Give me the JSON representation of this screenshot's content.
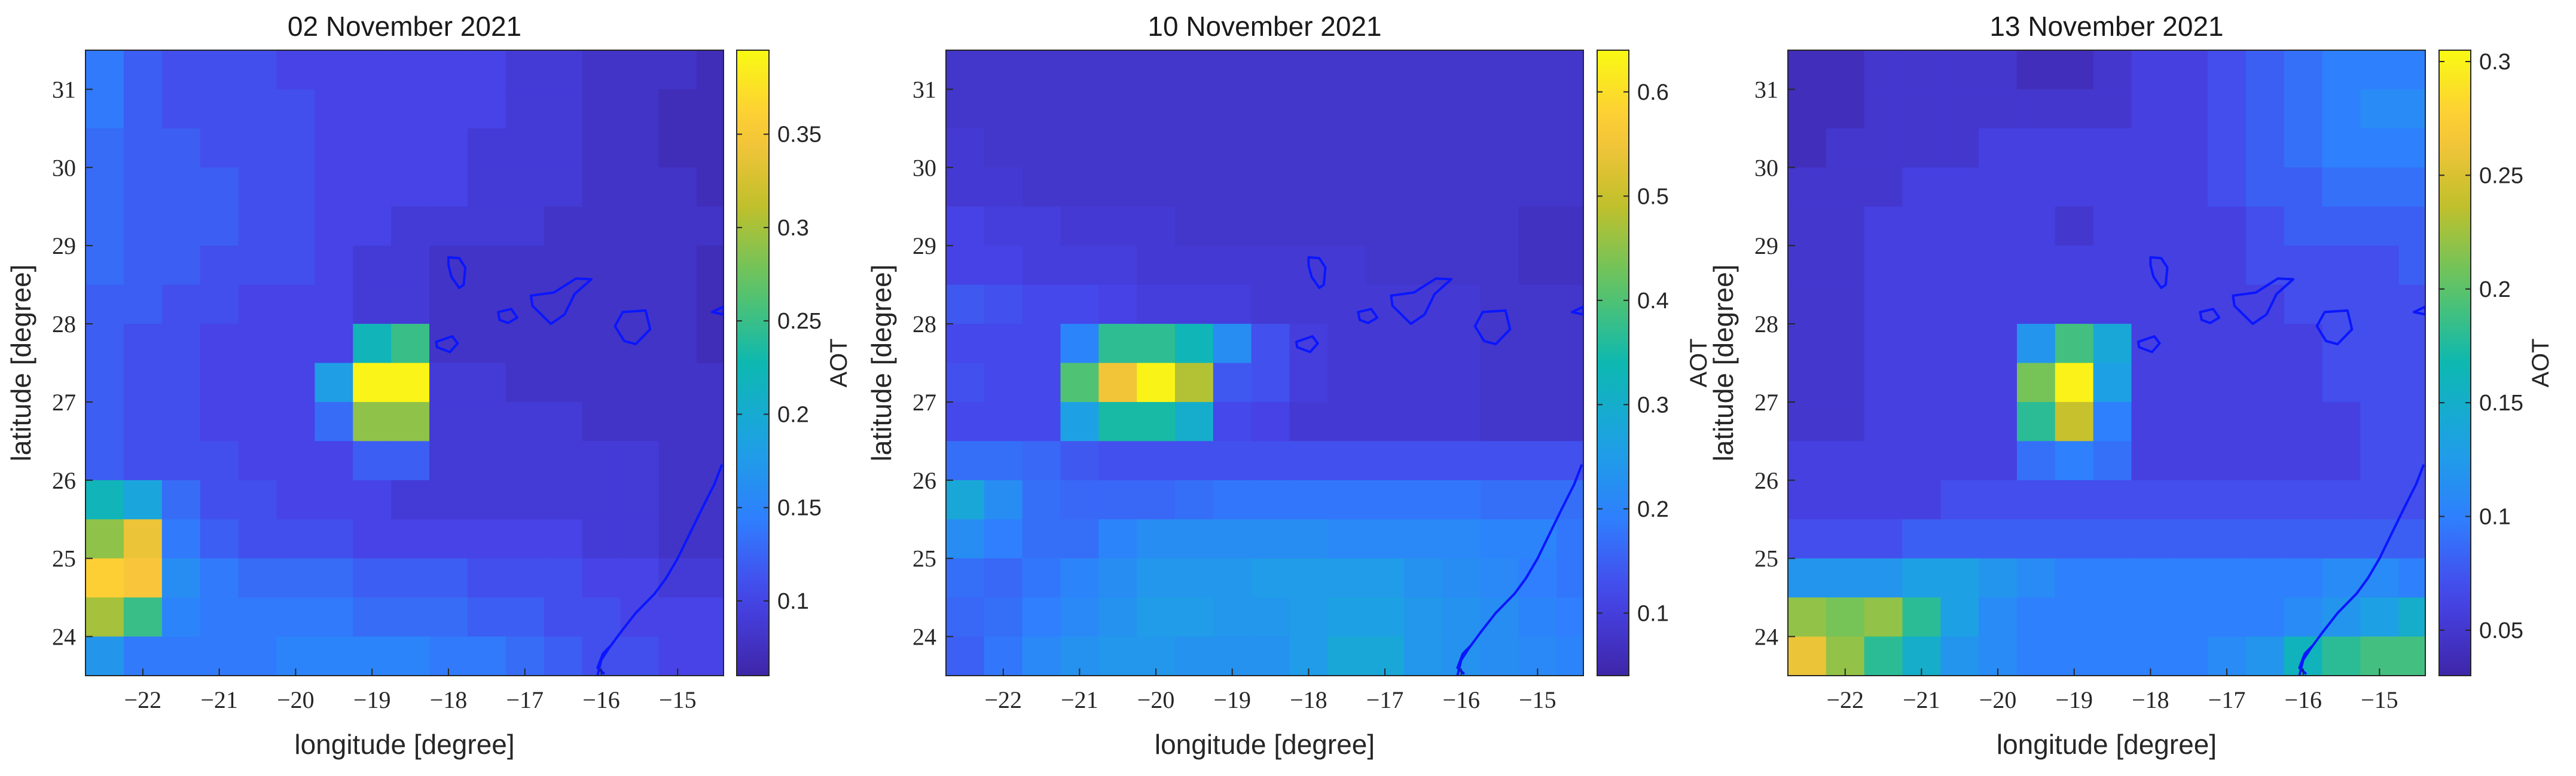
{
  "colormap": [
    "#3e26a8",
    "#4744e9",
    "#2f7ffe",
    "#1ca3e2",
    "#0db8b0",
    "#5fc465",
    "#c0c02c",
    "#fec63c",
    "#f9fa13"
  ],
  "coastline_color": "#0000ff",
  "chart_data": [
    {
      "type": "heatmap",
      "title": "02 November 2021",
      "xlabel": "longitude [degree]",
      "ylabel": "latitude [degree]",
      "xlim": [
        -22.75,
        -14.4
      ],
      "ylim": [
        23.5,
        31.5
      ],
      "xticks": [
        -22,
        -21,
        -20,
        -19,
        -18,
        -17,
        -16,
        -15
      ],
      "yticks": [
        24,
        25,
        26,
        27,
        28,
        29,
        30,
        31
      ],
      "colorbar": {
        "label": "AOT",
        "clim": [
          0.06,
          0.395
        ],
        "ticks": [
          0.1,
          0.15,
          0.2,
          0.25,
          0.3,
          0.35
        ]
      },
      "cell_size_degree": 0.5,
      "first_cell_center": {
        "lon": -22.5,
        "lat": 31.25
      },
      "values": [
        [
          0.14,
          0.12,
          0.11,
          0.11,
          0.11,
          0.1,
          0.1,
          0.1,
          0.1,
          0.1,
          0.1,
          0.09,
          0.09,
          0.08,
          0.08,
          0.08,
          0.07
        ],
        [
          0.14,
          0.12,
          0.11,
          0.11,
          0.11,
          0.11,
          0.1,
          0.1,
          0.1,
          0.1,
          0.1,
          0.09,
          0.09,
          0.08,
          0.08,
          0.07,
          0.07
        ],
        [
          0.13,
          0.12,
          0.12,
          0.11,
          0.11,
          0.11,
          0.1,
          0.1,
          0.1,
          0.1,
          0.09,
          0.09,
          0.09,
          0.08,
          0.08,
          0.07,
          0.07
        ],
        [
          0.13,
          0.12,
          0.12,
          0.12,
          0.11,
          0.11,
          0.1,
          0.1,
          0.1,
          0.1,
          0.09,
          0.09,
          0.09,
          0.08,
          0.08,
          0.08,
          0.07
        ],
        [
          0.13,
          0.12,
          0.12,
          0.12,
          0.11,
          0.11,
          0.1,
          0.1,
          0.09,
          0.09,
          0.09,
          0.09,
          0.08,
          0.08,
          0.08,
          0.08,
          0.08
        ],
        [
          0.13,
          0.12,
          0.12,
          0.11,
          0.11,
          0.11,
          0.1,
          0.09,
          0.09,
          0.08,
          0.08,
          0.08,
          0.08,
          0.08,
          0.08,
          0.08,
          0.07
        ],
        [
          0.12,
          0.12,
          0.11,
          0.11,
          0.1,
          0.1,
          0.1,
          0.09,
          0.09,
          0.08,
          0.08,
          0.08,
          0.08,
          0.08,
          0.08,
          0.08,
          0.07
        ],
        [
          0.12,
          0.11,
          0.11,
          0.1,
          0.1,
          0.1,
          0.1,
          0.22,
          0.25,
          0.08,
          0.08,
          0.08,
          0.08,
          0.08,
          0.08,
          0.08,
          0.07
        ],
        [
          0.12,
          0.11,
          0.11,
          0.1,
          0.1,
          0.1,
          0.18,
          0.39,
          0.39,
          0.09,
          0.09,
          0.08,
          0.08,
          0.08,
          0.08,
          0.08,
          0.08
        ],
        [
          0.12,
          0.11,
          0.11,
          0.1,
          0.1,
          0.1,
          0.13,
          0.29,
          0.29,
          0.09,
          0.09,
          0.09,
          0.09,
          0.08,
          0.08,
          0.08,
          0.08
        ],
        [
          0.12,
          0.11,
          0.11,
          0.11,
          0.1,
          0.1,
          0.1,
          0.12,
          0.12,
          0.09,
          0.09,
          0.09,
          0.09,
          0.09,
          0.09,
          0.08,
          0.08
        ],
        [
          0.22,
          0.19,
          0.13,
          0.11,
          0.11,
          0.1,
          0.1,
          0.1,
          0.09,
          0.09,
          0.09,
          0.09,
          0.09,
          0.09,
          0.09,
          0.08,
          0.08
        ],
        [
          0.29,
          0.34,
          0.14,
          0.12,
          0.11,
          0.11,
          0.11,
          0.1,
          0.1,
          0.1,
          0.1,
          0.1,
          0.1,
          0.09,
          0.09,
          0.08,
          0.08
        ],
        [
          0.36,
          0.35,
          0.16,
          0.14,
          0.13,
          0.13,
          0.13,
          0.12,
          0.12,
          0.12,
          0.11,
          0.11,
          0.11,
          0.1,
          0.1,
          0.09,
          0.09
        ],
        [
          0.3,
          0.25,
          0.15,
          0.14,
          0.14,
          0.14,
          0.14,
          0.13,
          0.13,
          0.13,
          0.12,
          0.12,
          0.11,
          0.11,
          0.1,
          0.1,
          0.1
        ],
        [
          0.17,
          0.14,
          0.14,
          0.14,
          0.14,
          0.15,
          0.15,
          0.15,
          0.15,
          0.14,
          0.14,
          0.13,
          0.12,
          0.11,
          0.11,
          0.1,
          0.1
        ],
        [
          0.14,
          0.13,
          0.14,
          0.14,
          0.14,
          0.15,
          0.16,
          0.16,
          0.15,
          0.14,
          0.14,
          0.13,
          0.12,
          0.1,
          0.12,
          0.12,
          0.12
        ],
        [
          0.13,
          0.13,
          0.13,
          0.14,
          0.14,
          0.14,
          0.15,
          0.15,
          0.15,
          0.14,
          0.14,
          0.13,
          0.12,
          0.12,
          0.13,
          0.13,
          0.13
        ]
      ]
    },
    {
      "type": "heatmap",
      "title": "10 November 2021",
      "xlabel": "longitude [degree]",
      "ylabel": "latitude [degree]",
      "xlim": [
        -22.75,
        -14.4
      ],
      "ylim": [
        23.5,
        31.5
      ],
      "xticks": [
        -22,
        -21,
        -20,
        -19,
        -18,
        -17,
        -16,
        -15
      ],
      "yticks": [
        24,
        25,
        26,
        27,
        28,
        29,
        30,
        31
      ],
      "colorbar": {
        "label": "AOT",
        "clim": [
          0.04,
          0.64
        ],
        "ticks": [
          0.1,
          0.2,
          0.3,
          0.4,
          0.5,
          0.6
        ]
      },
      "cell_size_degree": 0.5,
      "first_cell_center": {
        "lon": -22.5,
        "lat": 31.25
      },
      "values": [
        [
          0.08,
          0.08,
          0.08,
          0.08,
          0.08,
          0.08,
          0.08,
          0.08,
          0.08,
          0.08,
          0.08,
          0.08,
          0.08,
          0.08,
          0.08,
          0.08,
          0.08
        ],
        [
          0.08,
          0.08,
          0.08,
          0.08,
          0.08,
          0.08,
          0.08,
          0.08,
          0.08,
          0.08,
          0.08,
          0.08,
          0.08,
          0.08,
          0.08,
          0.08,
          0.08
        ],
        [
          0.09,
          0.08,
          0.08,
          0.08,
          0.08,
          0.08,
          0.08,
          0.08,
          0.08,
          0.08,
          0.08,
          0.08,
          0.08,
          0.08,
          0.08,
          0.08,
          0.08
        ],
        [
          0.09,
          0.09,
          0.08,
          0.08,
          0.08,
          0.08,
          0.08,
          0.08,
          0.08,
          0.08,
          0.08,
          0.08,
          0.08,
          0.08,
          0.08,
          0.08,
          0.08
        ],
        [
          0.11,
          0.1,
          0.1,
          0.09,
          0.09,
          0.09,
          0.08,
          0.08,
          0.08,
          0.08,
          0.08,
          0.08,
          0.08,
          0.08,
          0.08,
          0.07,
          0.07
        ],
        [
          0.11,
          0.11,
          0.1,
          0.1,
          0.1,
          0.09,
          0.09,
          0.09,
          0.09,
          0.09,
          0.09,
          0.08,
          0.08,
          0.08,
          0.08,
          0.07,
          0.07
        ],
        [
          0.14,
          0.13,
          0.12,
          0.12,
          0.11,
          0.1,
          0.1,
          0.1,
          0.09,
          0.09,
          0.09,
          0.09,
          0.09,
          0.09,
          0.08,
          0.08,
          0.08
        ],
        [
          0.12,
          0.12,
          0.12,
          0.2,
          0.37,
          0.37,
          0.33,
          0.22,
          0.13,
          0.1,
          0.09,
          0.09,
          0.09,
          0.09,
          0.08,
          0.08,
          0.08
        ],
        [
          0.13,
          0.12,
          0.12,
          0.4,
          0.55,
          0.63,
          0.48,
          0.14,
          0.13,
          0.1,
          0.09,
          0.09,
          0.09,
          0.09,
          0.08,
          0.08,
          0.08
        ],
        [
          0.12,
          0.12,
          0.12,
          0.26,
          0.35,
          0.35,
          0.3,
          0.12,
          0.11,
          0.09,
          0.09,
          0.09,
          0.09,
          0.09,
          0.08,
          0.08,
          0.08
        ],
        [
          0.17,
          0.17,
          0.16,
          0.14,
          0.13,
          0.13,
          0.13,
          0.13,
          0.13,
          0.13,
          0.13,
          0.13,
          0.13,
          0.13,
          0.13,
          0.13,
          0.13
        ],
        [
          0.28,
          0.22,
          0.17,
          0.16,
          0.16,
          0.16,
          0.17,
          0.18,
          0.18,
          0.18,
          0.18,
          0.18,
          0.18,
          0.18,
          0.17,
          0.17,
          0.17
        ],
        [
          0.22,
          0.19,
          0.17,
          0.17,
          0.2,
          0.22,
          0.22,
          0.22,
          0.22,
          0.22,
          0.21,
          0.21,
          0.21,
          0.21,
          0.2,
          0.2,
          0.18
        ],
        [
          0.17,
          0.16,
          0.18,
          0.2,
          0.22,
          0.24,
          0.24,
          0.24,
          0.25,
          0.25,
          0.25,
          0.25,
          0.23,
          0.22,
          0.21,
          0.19,
          0.18
        ],
        [
          0.16,
          0.17,
          0.19,
          0.21,
          0.23,
          0.25,
          0.25,
          0.24,
          0.24,
          0.25,
          0.26,
          0.26,
          0.24,
          0.23,
          0.22,
          0.2,
          0.19
        ],
        [
          0.15,
          0.18,
          0.21,
          0.23,
          0.24,
          0.24,
          0.23,
          0.23,
          0.23,
          0.25,
          0.28,
          0.28,
          0.24,
          0.23,
          0.22,
          0.21,
          0.2
        ],
        [
          0.14,
          0.17,
          0.2,
          0.22,
          0.23,
          0.24,
          0.24,
          0.24,
          0.25,
          0.27,
          0.28,
          0.27,
          0.24,
          0.23,
          0.22,
          0.21,
          0.2
        ],
        [
          0.13,
          0.16,
          0.19,
          0.21,
          0.22,
          0.23,
          0.23,
          0.24,
          0.24,
          0.25,
          0.25,
          0.24,
          0.23,
          0.22,
          0.21,
          0.2,
          0.19
        ]
      ]
    },
    {
      "type": "heatmap",
      "title": "13 November 2021",
      "xlabel": "longitude [degree]",
      "ylabel": "latitude [degree]",
      "xlim": [
        -22.75,
        -14.4
      ],
      "ylim": [
        23.5,
        31.5
      ],
      "xticks": [
        -22,
        -21,
        -20,
        -19,
        -18,
        -17,
        -16,
        -15
      ],
      "yticks": [
        24,
        25,
        26,
        27,
        28,
        29,
        30,
        31
      ],
      "colorbar": {
        "label": "AOT",
        "clim": [
          0.03,
          0.305
        ],
        "ticks": [
          0.05,
          0.1,
          0.15,
          0.2,
          0.25,
          0.3
        ]
      },
      "cell_size_degree": 0.5,
      "first_cell_center": {
        "lon": -22.5,
        "lat": 31.25
      },
      "values": [
        [
          0.04,
          0.04,
          0.05,
          0.05,
          0.05,
          0.05,
          0.04,
          0.04,
          0.05,
          0.06,
          0.06,
          0.07,
          0.08,
          0.09,
          0.1,
          0.1,
          0.1
        ],
        [
          0.04,
          0.04,
          0.05,
          0.05,
          0.05,
          0.05,
          0.05,
          0.05,
          0.05,
          0.06,
          0.06,
          0.07,
          0.08,
          0.09,
          0.1,
          0.11,
          0.11
        ],
        [
          0.04,
          0.05,
          0.05,
          0.05,
          0.05,
          0.06,
          0.06,
          0.06,
          0.06,
          0.06,
          0.06,
          0.07,
          0.08,
          0.09,
          0.1,
          0.1,
          0.1
        ],
        [
          0.05,
          0.05,
          0.05,
          0.06,
          0.06,
          0.06,
          0.06,
          0.06,
          0.06,
          0.06,
          0.06,
          0.07,
          0.08,
          0.08,
          0.09,
          0.09,
          0.09
        ],
        [
          0.05,
          0.05,
          0.06,
          0.06,
          0.06,
          0.06,
          0.06,
          0.05,
          0.06,
          0.06,
          0.06,
          0.06,
          0.07,
          0.08,
          0.08,
          0.08,
          0.08
        ],
        [
          0.05,
          0.05,
          0.06,
          0.06,
          0.06,
          0.06,
          0.06,
          0.06,
          0.06,
          0.06,
          0.06,
          0.06,
          0.07,
          0.07,
          0.07,
          0.07,
          0.08
        ],
        [
          0.05,
          0.05,
          0.06,
          0.06,
          0.06,
          0.06,
          0.06,
          0.06,
          0.06,
          0.06,
          0.06,
          0.06,
          0.06,
          0.07,
          0.07,
          0.07,
          0.07
        ],
        [
          0.05,
          0.05,
          0.06,
          0.06,
          0.06,
          0.06,
          0.12,
          0.19,
          0.14,
          0.06,
          0.06,
          0.06,
          0.06,
          0.06,
          0.07,
          0.07,
          0.07
        ],
        [
          0.05,
          0.05,
          0.06,
          0.06,
          0.06,
          0.06,
          0.21,
          0.3,
          0.13,
          0.06,
          0.06,
          0.06,
          0.06,
          0.06,
          0.07,
          0.07,
          0.07
        ],
        [
          0.05,
          0.05,
          0.06,
          0.06,
          0.06,
          0.06,
          0.18,
          0.24,
          0.1,
          0.06,
          0.06,
          0.06,
          0.06,
          0.06,
          0.06,
          0.07,
          0.07
        ],
        [
          0.06,
          0.06,
          0.06,
          0.06,
          0.06,
          0.06,
          0.09,
          0.1,
          0.09,
          0.06,
          0.06,
          0.06,
          0.06,
          0.06,
          0.06,
          0.07,
          0.07
        ],
        [
          0.06,
          0.06,
          0.06,
          0.06,
          0.07,
          0.07,
          0.07,
          0.07,
          0.07,
          0.07,
          0.07,
          0.07,
          0.07,
          0.07,
          0.07,
          0.07,
          0.07
        ],
        [
          0.07,
          0.07,
          0.07,
          0.08,
          0.08,
          0.08,
          0.08,
          0.08,
          0.08,
          0.08,
          0.08,
          0.08,
          0.08,
          0.08,
          0.08,
          0.08,
          0.08
        ],
        [
          0.12,
          0.12,
          0.12,
          0.13,
          0.13,
          0.12,
          0.11,
          0.1,
          0.1,
          0.1,
          0.1,
          0.1,
          0.1,
          0.1,
          0.11,
          0.11,
          0.1
        ],
        [
          0.22,
          0.21,
          0.22,
          0.18,
          0.13,
          0.11,
          0.1,
          0.1,
          0.1,
          0.1,
          0.1,
          0.1,
          0.1,
          0.11,
          0.12,
          0.13,
          0.15
        ],
        [
          0.26,
          0.22,
          0.18,
          0.15,
          0.12,
          0.11,
          0.1,
          0.1,
          0.1,
          0.1,
          0.1,
          0.11,
          0.12,
          0.16,
          0.18,
          0.19,
          0.19
        ],
        [
          0.19,
          0.14,
          0.13,
          0.12,
          0.11,
          0.11,
          0.1,
          0.1,
          0.1,
          0.1,
          0.1,
          0.12,
          0.16,
          0.21,
          0.24,
          0.23,
          0.21
        ],
        [
          0.18,
          0.14,
          0.12,
          0.11,
          0.11,
          0.11,
          0.1,
          0.1,
          0.1,
          0.1,
          0.1,
          0.13,
          0.2,
          0.27,
          0.28,
          0.27,
          0.24
        ]
      ]
    }
  ]
}
